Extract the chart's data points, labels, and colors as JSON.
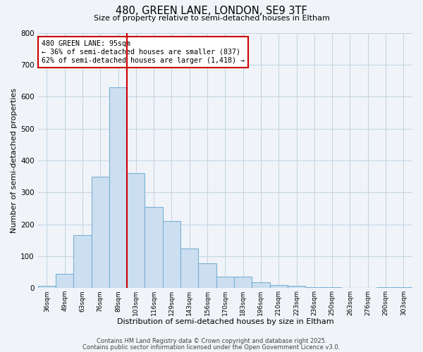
{
  "title_line1": "480, GREEN LANE, LONDON, SE9 3TF",
  "title_line2": "Size of property relative to semi-detached houses in Eltham",
  "xlabel": "Distribution of semi-detached houses by size in Eltham",
  "ylabel": "Number of semi-detached properties",
  "categories": [
    "36sqm",
    "49sqm",
    "63sqm",
    "76sqm",
    "89sqm",
    "103sqm",
    "116sqm",
    "129sqm",
    "143sqm",
    "156sqm",
    "170sqm",
    "183sqm",
    "196sqm",
    "210sqm",
    "223sqm",
    "236sqm",
    "250sqm",
    "263sqm",
    "276sqm",
    "290sqm",
    "303sqm"
  ],
  "values": [
    8,
    44,
    165,
    350,
    630,
    360,
    255,
    210,
    125,
    78,
    35,
    35,
    18,
    10,
    8,
    3,
    2,
    0,
    0,
    2,
    2
  ],
  "bar_color": "#ccdff0",
  "bar_edge_color": "#7ab0d4",
  "vline_x_index": 5,
  "vline_color": "#cc0000",
  "annotation_text": "480 GREEN LANE: 95sqm\n← 36% of semi-detached houses are smaller (837)\n62% of semi-detached houses are larger (1,418) →",
  "annotation_box_edge_color": "#cc0000",
  "ylim": [
    0,
    800
  ],
  "yticks": [
    0,
    100,
    200,
    300,
    400,
    500,
    600,
    700,
    800
  ],
  "footer_line1": "Contains HM Land Registry data © Crown copyright and database right 2025.",
  "footer_line2": "Contains public sector information licensed under the Open Government Licence v3.0.",
  "bg_color": "#f0f4f8",
  "grid_color": "#c5d5e5"
}
